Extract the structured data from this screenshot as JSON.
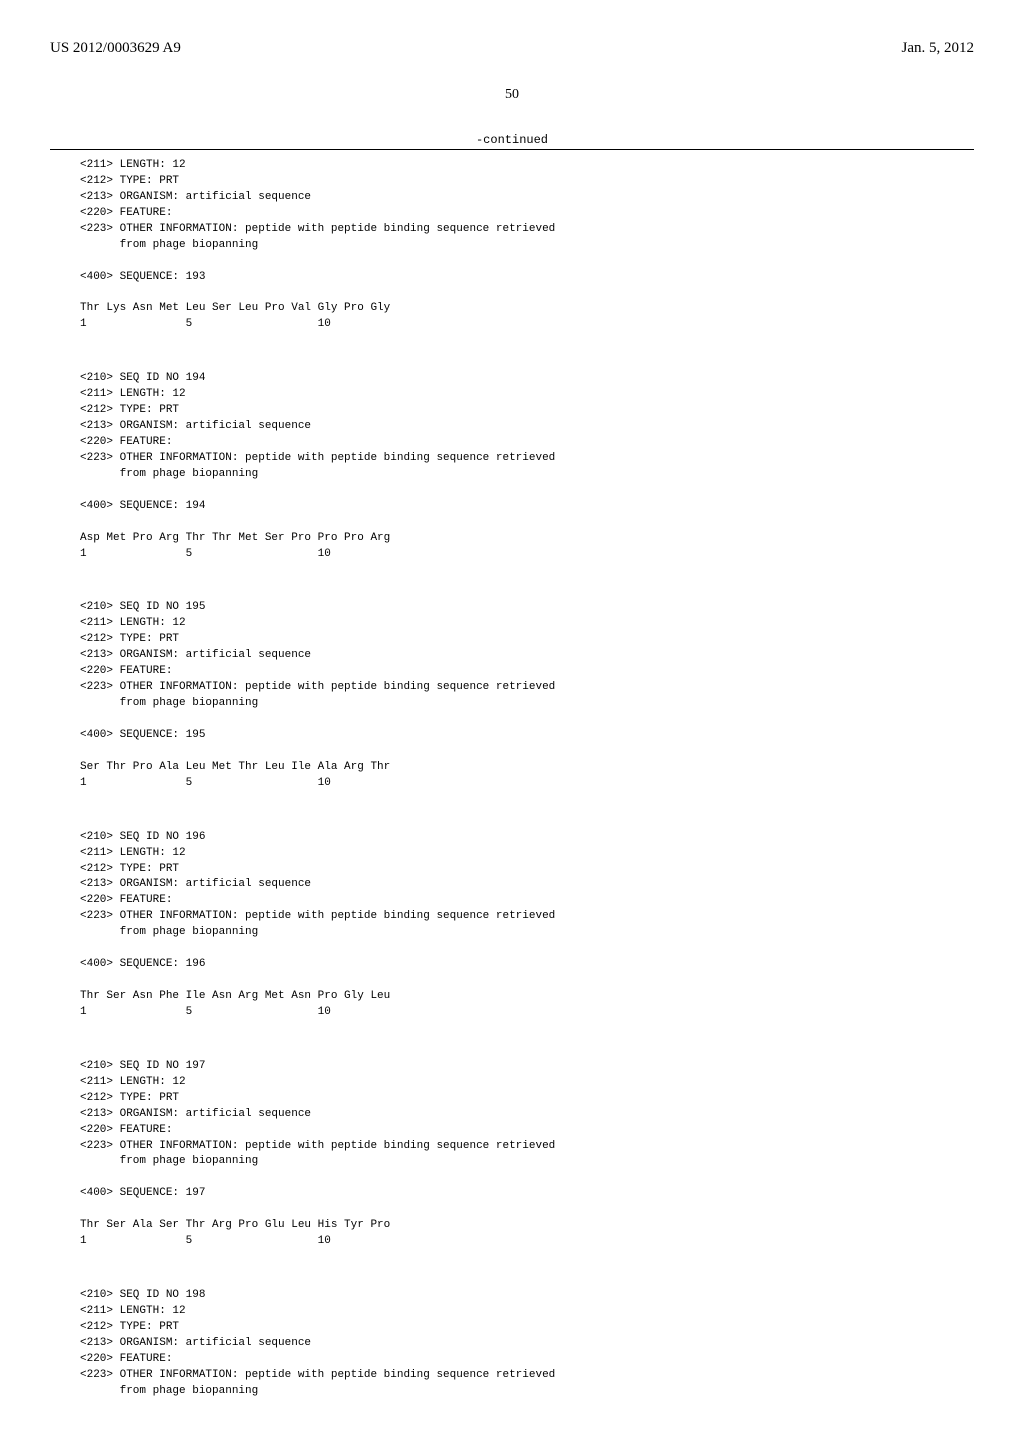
{
  "header": {
    "left": "US 2012/0003629 A9",
    "right": "Jan. 5, 2012"
  },
  "page_number": "50",
  "continued_label": "-continued",
  "blocks": [
    {
      "headers": [
        "<211> LENGTH: 12",
        "<212> TYPE: PRT",
        "<213> ORGANISM: artificial sequence",
        "<220> FEATURE:",
        "<223> OTHER INFORMATION: peptide with peptide binding sequence retrieved",
        "      from phage biopanning"
      ],
      "seq_label": "<400> SEQUENCE: 193",
      "aa": "Thr Lys Asn Met Leu Ser Leu Pro Val Gly Pro Gly",
      "nums": "1               5                   10"
    },
    {
      "headers": [
        "<210> SEQ ID NO 194",
        "<211> LENGTH: 12",
        "<212> TYPE: PRT",
        "<213> ORGANISM: artificial sequence",
        "<220> FEATURE:",
        "<223> OTHER INFORMATION: peptide with peptide binding sequence retrieved",
        "      from phage biopanning"
      ],
      "seq_label": "<400> SEQUENCE: 194",
      "aa": "Asp Met Pro Arg Thr Thr Met Ser Pro Pro Pro Arg",
      "nums": "1               5                   10"
    },
    {
      "headers": [
        "<210> SEQ ID NO 195",
        "<211> LENGTH: 12",
        "<212> TYPE: PRT",
        "<213> ORGANISM: artificial sequence",
        "<220> FEATURE:",
        "<223> OTHER INFORMATION: peptide with peptide binding sequence retrieved",
        "      from phage biopanning"
      ],
      "seq_label": "<400> SEQUENCE: 195",
      "aa": "Ser Thr Pro Ala Leu Met Thr Leu Ile Ala Arg Thr",
      "nums": "1               5                   10"
    },
    {
      "headers": [
        "<210> SEQ ID NO 196",
        "<211> LENGTH: 12",
        "<212> TYPE: PRT",
        "<213> ORGANISM: artificial sequence",
        "<220> FEATURE:",
        "<223> OTHER INFORMATION: peptide with peptide binding sequence retrieved",
        "      from phage biopanning"
      ],
      "seq_label": "<400> SEQUENCE: 196",
      "aa": "Thr Ser Asn Phe Ile Asn Arg Met Asn Pro Gly Leu",
      "nums": "1               5                   10"
    },
    {
      "headers": [
        "<210> SEQ ID NO 197",
        "<211> LENGTH: 12",
        "<212> TYPE: PRT",
        "<213> ORGANISM: artificial sequence",
        "<220> FEATURE:",
        "<223> OTHER INFORMATION: peptide with peptide binding sequence retrieved",
        "      from phage biopanning"
      ],
      "seq_label": "<400> SEQUENCE: 197",
      "aa": "Thr Ser Ala Ser Thr Arg Pro Glu Leu His Tyr Pro",
      "nums": "1               5                   10"
    },
    {
      "headers": [
        "<210> SEQ ID NO 198",
        "<211> LENGTH: 12",
        "<212> TYPE: PRT",
        "<213> ORGANISM: artificial sequence",
        "<220> FEATURE:",
        "<223> OTHER INFORMATION: peptide with peptide binding sequence retrieved",
        "      from phage biopanning"
      ],
      "seq_label": null,
      "aa": null,
      "nums": null
    }
  ]
}
